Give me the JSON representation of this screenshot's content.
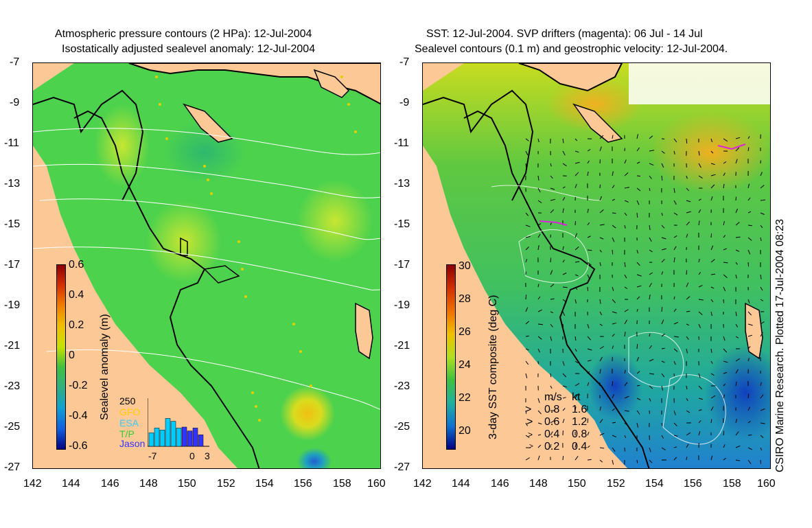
{
  "left_panel": {
    "title_line1": "Atmospheric pressure contours (2 HPa): 12-Jul-2004",
    "title_line2": "Isostatically adjusted sealevel anomaly: 12-Jul-2004",
    "colorbar_label": "Sealevel anomaly (m)",
    "colorbar_ticks": [
      "0.6",
      "0.4",
      "0.2",
      "0",
      "-0.2",
      "-0.4",
      "-0.6"
    ],
    "histogram": {
      "ymax_label": "250",
      "legend": [
        {
          "label": "GFO",
          "color": "#ffcc00"
        },
        {
          "label": "ESA",
          "color": "#33ccff"
        },
        {
          "label": "T/P",
          "color": "#33cc33"
        },
        {
          "label": "Jason",
          "color": "#3333ff"
        }
      ],
      "x_ticks": [
        "-7",
        "0",
        "3"
      ],
      "bars": [
        {
          "day": -7,
          "total": 70,
          "color": "#00ccff"
        },
        {
          "day": -6,
          "total": 95,
          "color": "#00ccff"
        },
        {
          "day": -5,
          "total": 85,
          "color": "#00ccff"
        },
        {
          "day": -4,
          "total": 145,
          "color": "#00ccff"
        },
        {
          "day": -3,
          "total": 130,
          "color": "#00ccff"
        },
        {
          "day": -2,
          "total": 95,
          "color": "#00ccff"
        },
        {
          "day": -1,
          "total": 100,
          "color": "#3333ff"
        },
        {
          "day": 0,
          "total": 80,
          "color": "#3333ff"
        },
        {
          "day": 1,
          "total": 95,
          "color": "#3333ff"
        },
        {
          "day": 2,
          "total": 60,
          "color": "#3333ff"
        }
      ]
    }
  },
  "right_panel": {
    "title_line1": "SST: 12-Jul-2004. SVP drifters (magenta): 06 Jul - 14 Jul",
    "title_line2": "Sealevel contours (0.1 m) and geostrophic velocity: 12-Jul-2004.",
    "colorbar_label": "3-day SST composite (deg C)",
    "colorbar_ticks": [
      "30",
      "28",
      "26",
      "24",
      "22",
      "20"
    ],
    "velocity_legend": {
      "header_ms": "m/s",
      "header_kt": "kt",
      "rows": [
        {
          "ms": "0.8",
          "kt": "1.6"
        },
        {
          "ms": "0.6",
          "kt": "1.2"
        },
        {
          "ms": "0.4",
          "kt": "0.8"
        },
        {
          "ms": "0.2",
          "kt": "0.4"
        }
      ]
    }
  },
  "axes": {
    "y_ticks": [
      "-7",
      "-9",
      "-11",
      "-13",
      "-15",
      "-17",
      "-19",
      "-21",
      "-23",
      "-25",
      "-27"
    ],
    "x_ticks": [
      "142",
      "144",
      "146",
      "148",
      "150",
      "152",
      "154",
      "156",
      "158",
      "160"
    ]
  },
  "credit": "CSIRO Marine Research. Plotted 17-Jul-2004 08:23",
  "colors": {
    "land": "#fbc896",
    "ocean_left": "#4dd24d",
    "ocean_right": "#3fbf3f"
  }
}
